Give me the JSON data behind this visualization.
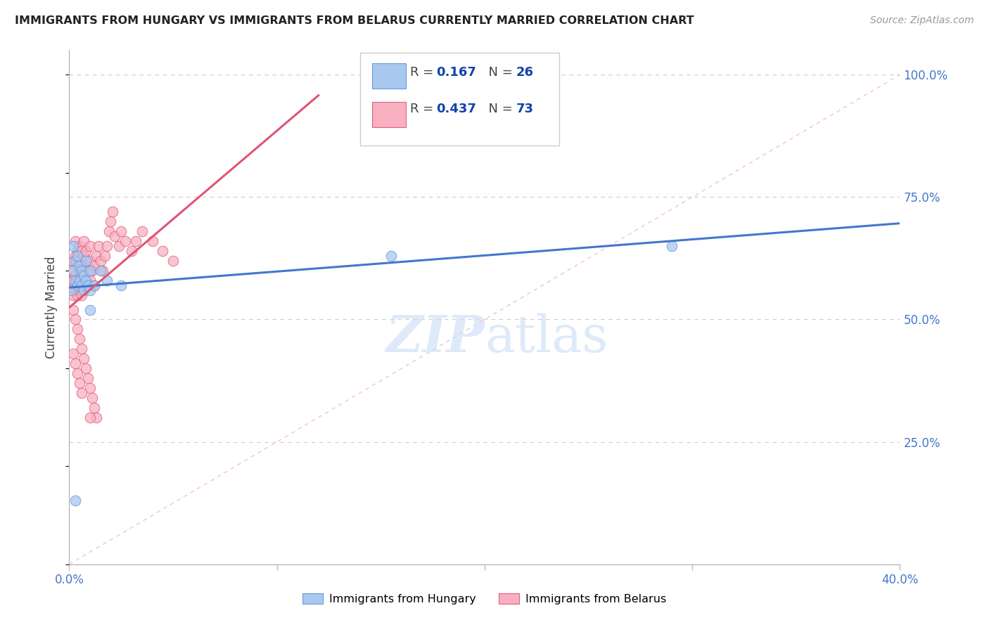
{
  "title": "IMMIGRANTS FROM HUNGARY VS IMMIGRANTS FROM BELARUS CURRENTLY MARRIED CORRELATION CHART",
  "source": "Source: ZipAtlas.com",
  "ylabel": "Currently Married",
  "xlim": [
    0.0,
    0.4
  ],
  "ylim": [
    0.0,
    1.05
  ],
  "ytick_vals": [
    0.25,
    0.5,
    0.75,
    1.0
  ],
  "ytick_labels": [
    "25.0%",
    "50.0%",
    "75.0%",
    "100.0%"
  ],
  "xtick_vals": [
    0.0,
    0.1,
    0.2,
    0.3,
    0.4
  ],
  "xtick_labels": [
    "0.0%",
    "",
    "",
    "",
    "40.0%"
  ],
  "hungary_color": "#a8c8f0",
  "belarus_color": "#f8b0c0",
  "hungary_edge_color": "#6699dd",
  "belarus_edge_color": "#e06080",
  "hungary_line_color": "#4477cc",
  "belarus_line_color": "#e05575",
  "diagonal_color": "#f0b8c8",
  "tick_color": "#4477cc",
  "watermark_color": "#c8ddf5",
  "hungary_R": 0.167,
  "hungary_N": 26,
  "belarus_R": 0.437,
  "belarus_N": 73,
  "hungary_x": [
    0.001,
    0.002,
    0.002,
    0.003,
    0.003,
    0.004,
    0.004,
    0.005,
    0.005,
    0.006,
    0.006,
    0.007,
    0.007,
    0.008,
    0.008,
    0.009,
    0.01,
    0.01,
    0.012,
    0.015,
    0.018,
    0.025,
    0.155,
    0.29,
    0.003,
    0.01
  ],
  "hungary_y": [
    0.56,
    0.6,
    0.65,
    0.58,
    0.62,
    0.57,
    0.63,
    0.58,
    0.61,
    0.57,
    0.6,
    0.56,
    0.59,
    0.58,
    0.62,
    0.57,
    0.6,
    0.56,
    0.57,
    0.6,
    0.58,
    0.57,
    0.63,
    0.65,
    0.13,
    0.52
  ],
  "belarus_x": [
    0.001,
    0.001,
    0.002,
    0.002,
    0.002,
    0.003,
    0.003,
    0.003,
    0.003,
    0.004,
    0.004,
    0.004,
    0.004,
    0.005,
    0.005,
    0.005,
    0.005,
    0.006,
    0.006,
    0.006,
    0.006,
    0.007,
    0.007,
    0.007,
    0.007,
    0.008,
    0.008,
    0.008,
    0.009,
    0.009,
    0.01,
    0.01,
    0.01,
    0.011,
    0.012,
    0.012,
    0.013,
    0.014,
    0.015,
    0.016,
    0.017,
    0.018,
    0.019,
    0.02,
    0.021,
    0.022,
    0.024,
    0.025,
    0.027,
    0.03,
    0.032,
    0.035,
    0.04,
    0.045,
    0.05,
    0.002,
    0.003,
    0.004,
    0.005,
    0.006,
    0.007,
    0.008,
    0.009,
    0.01,
    0.011,
    0.012,
    0.013,
    0.002,
    0.003,
    0.004,
    0.005,
    0.006,
    0.01
  ],
  "belarus_y": [
    0.57,
    0.6,
    0.55,
    0.58,
    0.62,
    0.56,
    0.59,
    0.63,
    0.66,
    0.55,
    0.58,
    0.61,
    0.64,
    0.56,
    0.59,
    0.62,
    0.65,
    0.55,
    0.58,
    0.61,
    0.64,
    0.57,
    0.6,
    0.63,
    0.66,
    0.58,
    0.61,
    0.64,
    0.57,
    0.6,
    0.58,
    0.62,
    0.65,
    0.6,
    0.57,
    0.61,
    0.63,
    0.65,
    0.62,
    0.6,
    0.63,
    0.65,
    0.68,
    0.7,
    0.72,
    0.67,
    0.65,
    0.68,
    0.66,
    0.64,
    0.66,
    0.68,
    0.66,
    0.64,
    0.62,
    0.52,
    0.5,
    0.48,
    0.46,
    0.44,
    0.42,
    0.4,
    0.38,
    0.36,
    0.34,
    0.32,
    0.3,
    0.43,
    0.41,
    0.39,
    0.37,
    0.35,
    0.3
  ],
  "legend_R1": "R = ",
  "legend_V1": "0.167",
  "legend_N1": "N = ",
  "legend_N1v": "26",
  "legend_R2": "R = ",
  "legend_V2": "0.437",
  "legend_N2": "N = ",
  "legend_N2v": "73",
  "legend_text_color": "#1144aa",
  "legend_label_color": "#444444",
  "bottom_legend_hungary": "Immigrants from Hungary",
  "bottom_legend_belarus": "Immigrants from Belarus"
}
